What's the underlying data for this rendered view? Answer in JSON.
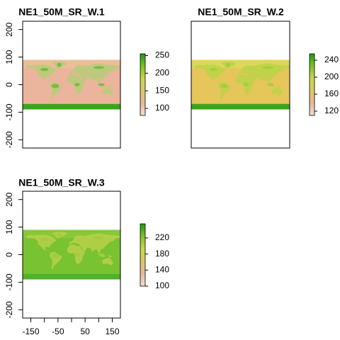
{
  "chart_data": [
    {
      "type": "heatmap",
      "title": "NE1_50M_SR_W.1",
      "xlim": [
        -180,
        180
      ],
      "ylim": [
        -230,
        230
      ],
      "raster_extent": {
        "x": [
          -180,
          180
        ],
        "y": [
          -90,
          90
        ]
      },
      "x_ticks": [],
      "y_ticks": [
        -200,
        -100,
        0,
        100,
        200
      ],
      "legend": {
        "range": [
          80,
          255
        ],
        "ticks": [
          100,
          150,
          200,
          250
        ],
        "colors": [
          "#f2dfd4",
          "#e6b89a",
          "#d9c96a",
          "#c8d84a",
          "#7fc02c",
          "#1f9b10"
        ]
      },
      "appearance": {
        "base": "#ebb49c",
        "band": "#e9be98",
        "land": "#b7cc78",
        "ice": "#3aa51a",
        "accent": "#62b82c"
      }
    },
    {
      "type": "heatmap",
      "title": "NE1_50M_SR_W.2",
      "xlim": [
        -180,
        180
      ],
      "ylim": [
        -230,
        230
      ],
      "raster_extent": {
        "x": [
          -180,
          180
        ],
        "y": [
          -90,
          90
        ]
      },
      "x_ticks": [],
      "y_ticks": [],
      "legend": {
        "range": [
          110,
          255
        ],
        "ticks": [
          120,
          160,
          200,
          240
        ],
        "colors": [
          "#f2dfd4",
          "#e6b89a",
          "#d9c96a",
          "#c8d84a",
          "#7fc02c",
          "#1f9b10"
        ]
      },
      "appearance": {
        "base": "#e6c55a",
        "band": "#dcd858",
        "land": "#b9d447",
        "ice": "#3aa51a",
        "accent": "#9ccc3a"
      }
    },
    {
      "type": "heatmap",
      "title": "NE1_50M_SR_W.3",
      "xlim": [
        -180,
        180
      ],
      "ylim": [
        -230,
        230
      ],
      "raster_extent": {
        "x": [
          -180,
          180
        ],
        "y": [
          -90,
          90
        ]
      },
      "x_ticks": [
        -150,
        -100,
        -50,
        0,
        50,
        100,
        150
      ],
      "x_tick_labels_shown": [
        -150,
        -50,
        50,
        150
      ],
      "y_ticks": [
        -200,
        -100,
        0,
        100,
        200
      ],
      "legend": {
        "range": [
          100,
          255
        ],
        "ticks": [
          100,
          140,
          180,
          220
        ],
        "colors": [
          "#f2dfd4",
          "#e6b89a",
          "#d9c96a",
          "#c8d84a",
          "#7fc02c",
          "#1f9b10"
        ]
      },
      "appearance": {
        "base": "#79c232",
        "band": "#88c83a",
        "land": "#b9d04a",
        "ice": "#4fb22a",
        "accent": "#9ccb3f"
      }
    }
  ]
}
